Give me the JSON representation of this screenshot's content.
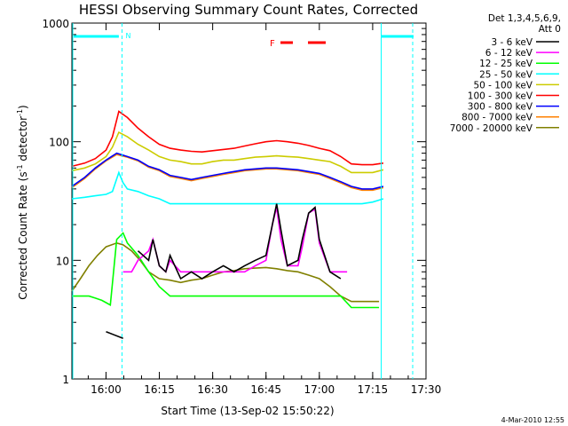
{
  "chart_data": {
    "type": "line",
    "title": "HESSI Observing Summary Count Rates, Corrected",
    "xlabel": "Start Time (13-Sep-02 15:50:22)",
    "ylabel_main": "Corrected Count Rate (s",
    "ylabel_sup1": "-1",
    "ylabel_mid": " detector",
    "ylabel_sup2": "-1",
    "ylabel_end": ")",
    "yscale": "log",
    "ylim": [
      1,
      1000
    ],
    "xlim": [
      15.84,
      17.5
    ],
    "x_ticks": [
      {
        "v": 16.0,
        "label": "16:00"
      },
      {
        "v": 16.25,
        "label": "16:15"
      },
      {
        "v": 16.5,
        "label": "16:30"
      },
      {
        "v": 16.75,
        "label": "16:45"
      },
      {
        "v": 17.0,
        "label": "17:00"
      },
      {
        "v": 17.25,
        "label": "17:15"
      },
      {
        "v": 17.5,
        "label": "17:30"
      }
    ],
    "y_ticks": [
      {
        "v": 1,
        "label": "1"
      },
      {
        "v": 10,
        "label": "10"
      },
      {
        "v": 100,
        "label": "100"
      },
      {
        "v": 1000,
        "label": "1000"
      }
    ],
    "legend_header": [
      "Det 1,3,4,5,6,9,",
      "Att 0"
    ],
    "series": [
      {
        "name": "3 - 6 keV",
        "color": "#000000",
        "x": [
          15.84,
          15.92,
          16.0,
          16.08,
          16.1,
          16.12,
          16.15,
          16.2,
          16.22,
          16.25,
          16.28,
          16.3,
          16.35,
          16.4,
          16.45,
          16.5,
          16.55,
          16.6,
          16.65,
          16.7,
          16.75,
          16.78,
          16.8,
          16.82,
          16.85,
          16.9,
          16.92,
          16.95,
          16.98,
          17.0,
          17.05,
          17.1,
          17.15
        ],
        "y": [
          null,
          null,
          2.5,
          2.2,
          null,
          null,
          12,
          10,
          15,
          9,
          8,
          11,
          7,
          8,
          7,
          8,
          9,
          8,
          9,
          10,
          11,
          20,
          30,
          18,
          9,
          10,
          15,
          25,
          28,
          15,
          8,
          7,
          null
        ]
      },
      {
        "name": "6 - 12 keV",
        "color": "#ff00ff",
        "x": [
          16.08,
          16.1,
          16.12,
          16.15,
          16.2,
          16.22,
          16.25,
          16.28,
          16.3,
          16.35,
          16.4,
          16.45,
          16.5,
          16.55,
          16.6,
          16.65,
          16.7,
          16.75,
          16.78,
          16.8,
          16.82,
          16.85,
          16.9,
          16.92,
          16.95,
          16.98,
          17.0,
          17.05,
          17.1,
          17.13
        ],
        "y": [
          8,
          8,
          8,
          10,
          12,
          15,
          9,
          8,
          10,
          8,
          8,
          8,
          8,
          8,
          8,
          8,
          9,
          10,
          20,
          28,
          15,
          9,
          9,
          13,
          25,
          27,
          14,
          8,
          8,
          8
        ]
      },
      {
        "name": "12 - 25 keV",
        "color": "#00ff00",
        "x": [
          15.84,
          15.88,
          15.92,
          15.95,
          15.98,
          16.0,
          16.02,
          16.05,
          16.08,
          16.1,
          16.15,
          16.2,
          16.25,
          16.3,
          16.35,
          16.4,
          16.45,
          16.5,
          16.55,
          16.6,
          16.65,
          16.7,
          16.75,
          16.8,
          16.85,
          16.9,
          16.95,
          17.0,
          17.05,
          17.1,
          17.15,
          17.2,
          17.25,
          17.28
        ],
        "y": [
          5,
          5,
          5,
          4.8,
          4.6,
          4.4,
          4.2,
          15,
          17,
          14,
          11,
          8,
          6,
          5,
          5,
          5,
          5,
          5,
          5,
          5,
          5,
          5,
          5,
          5,
          5,
          5,
          5,
          5,
          5,
          5,
          4,
          4,
          4,
          4
        ]
      },
      {
        "name": "25 - 50 keV",
        "color": "#00ffff",
        "x": [
          15.84,
          15.9,
          15.95,
          16.0,
          16.03,
          16.06,
          16.08,
          16.1,
          16.15,
          16.2,
          16.25,
          16.3,
          16.35,
          16.4,
          16.45,
          16.5,
          16.55,
          16.6,
          16.65,
          16.7,
          16.75,
          16.8,
          16.85,
          16.9,
          16.95,
          17.0,
          17.05,
          17.1,
          17.15,
          17.2,
          17.25,
          17.3
        ],
        "y": [
          33,
          34,
          35,
          36,
          38,
          55,
          45,
          40,
          38,
          35,
          33,
          30,
          30,
          30,
          30,
          30,
          30,
          30,
          30,
          30,
          30,
          30,
          30,
          30,
          30,
          30,
          30,
          30,
          30,
          30,
          31,
          33
        ]
      },
      {
        "name": "50 - 100 keV",
        "color": "#cccc00",
        "x": [
          15.84,
          15.9,
          15.95,
          16.0,
          16.03,
          16.06,
          16.1,
          16.15,
          16.2,
          16.25,
          16.3,
          16.35,
          16.4,
          16.45,
          16.5,
          16.55,
          16.6,
          16.65,
          16.7,
          16.75,
          16.8,
          16.85,
          16.9,
          16.95,
          17.0,
          17.05,
          17.1,
          17.15,
          17.2,
          17.25,
          17.3
        ],
        "y": [
          57,
          60,
          65,
          75,
          90,
          120,
          110,
          95,
          85,
          75,
          70,
          68,
          65,
          65,
          68,
          70,
          70,
          72,
          74,
          75,
          76,
          75,
          74,
          72,
          70,
          68,
          62,
          55,
          55,
          55,
          58
        ]
      },
      {
        "name": "100 - 300 keV",
        "color": "#ff0000",
        "x": [
          15.84,
          15.9,
          15.95,
          16.0,
          16.03,
          16.06,
          16.1,
          16.15,
          16.2,
          16.25,
          16.3,
          16.35,
          16.4,
          16.45,
          16.5,
          16.55,
          16.6,
          16.65,
          16.7,
          16.75,
          16.8,
          16.85,
          16.9,
          16.95,
          17.0,
          17.05,
          17.1,
          17.15,
          17.2,
          17.25,
          17.3
        ],
        "y": [
          62,
          66,
          72,
          85,
          110,
          180,
          160,
          130,
          110,
          95,
          88,
          85,
          83,
          82,
          84,
          86,
          88,
          92,
          96,
          100,
          102,
          100,
          97,
          93,
          88,
          84,
          75,
          65,
          64,
          64,
          66
        ]
      },
      {
        "name": "300 - 800 keV",
        "color": "#0000ff",
        "x": [
          15.84,
          15.9,
          15.95,
          16.0,
          16.05,
          16.1,
          16.15,
          16.2,
          16.25,
          16.3,
          16.35,
          16.4,
          16.45,
          16.5,
          16.55,
          16.6,
          16.65,
          16.7,
          16.75,
          16.8,
          16.85,
          16.9,
          16.95,
          17.0,
          17.05,
          17.1,
          17.15,
          17.2,
          17.25,
          17.3
        ],
        "y": [
          42,
          50,
          60,
          70,
          80,
          75,
          70,
          62,
          58,
          52,
          50,
          48,
          50,
          52,
          54,
          56,
          58,
          59,
          60,
          60,
          59,
          58,
          56,
          54,
          50,
          46,
          42,
          40,
          40,
          42
        ]
      },
      {
        "name": "800 - 7000 keV",
        "color": "#ff8000",
        "x": [
          15.84,
          15.9,
          15.95,
          16.0,
          16.05,
          16.1,
          16.15,
          16.2,
          16.25,
          16.3,
          16.35,
          16.4,
          16.45,
          16.5,
          16.55,
          16.6,
          16.65,
          16.7,
          16.75,
          16.8,
          16.85,
          16.9,
          16.95,
          17.0,
          17.05,
          17.1,
          17.15,
          17.2,
          17.25,
          17.3
        ],
        "y": [
          41,
          49,
          59,
          69,
          78,
          74,
          69,
          61,
          57,
          51,
          49,
          47,
          49,
          51,
          53,
          55,
          57,
          58,
          59,
          59,
          58,
          57,
          55,
          53,
          49,
          45,
          41,
          39,
          39,
          41
        ]
      },
      {
        "name": "7000 - 20000 keV",
        "color": "#808000",
        "x": [
          15.84,
          15.88,
          15.92,
          15.96,
          16.0,
          16.05,
          16.08,
          16.12,
          16.16,
          16.2,
          16.25,
          16.3,
          16.35,
          16.4,
          16.45,
          16.5,
          16.55,
          16.6,
          16.65,
          16.7,
          16.75,
          16.8,
          16.85,
          16.9,
          16.95,
          17.0,
          17.05,
          17.1,
          17.15,
          17.2,
          17.25,
          17.28
        ],
        "y": [
          5.5,
          7,
          9,
          11,
          13,
          14,
          13.5,
          12,
          10,
          8,
          7,
          6.8,
          6.5,
          6.8,
          7,
          7.5,
          8,
          8.2,
          8.5,
          8.6,
          8.7,
          8.5,
          8.2,
          8,
          7.5,
          7,
          6,
          5,
          4.5,
          4.5,
          4.5,
          4.5
        ]
      }
    ],
    "annotations": {
      "n_marker": "N",
      "f_marker": "F"
    },
    "timestamp": "4-Mar-2010 12:55",
    "grid": false
  }
}
